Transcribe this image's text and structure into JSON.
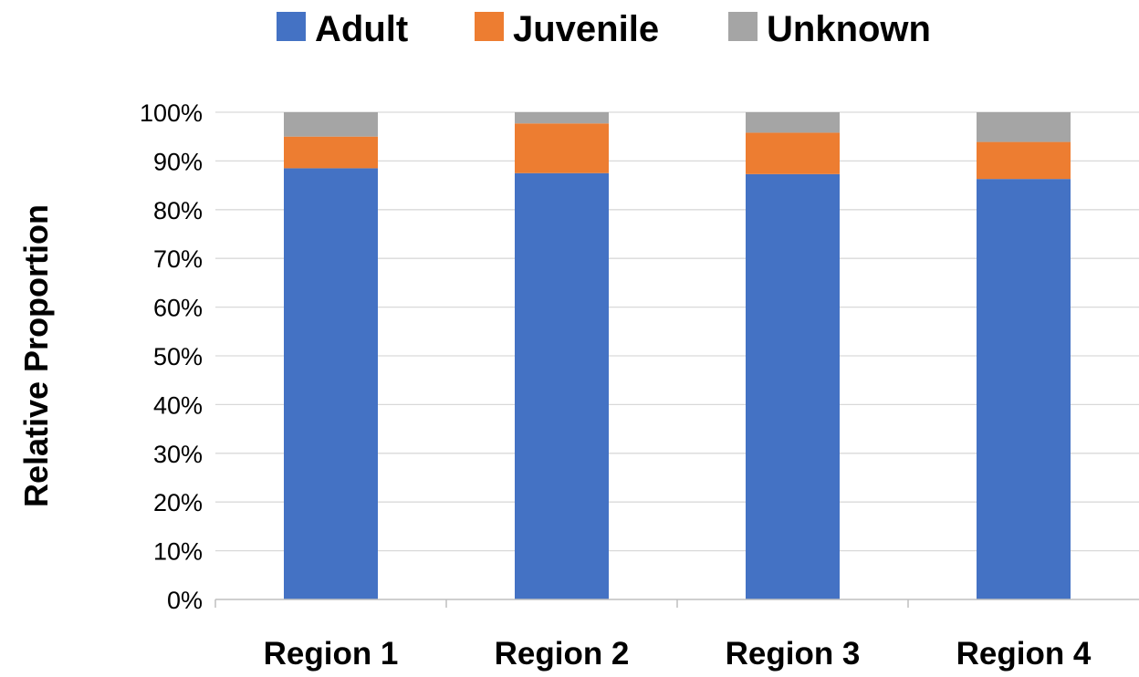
{
  "chart_data": {
    "type": "bar",
    "stacked": true,
    "percent_stacked": true,
    "categories": [
      "Region 1",
      "Region 2",
      "Region 3",
      "Region 4"
    ],
    "series": [
      {
        "name": "Adult",
        "color": "#4472C4",
        "values": [
          88.5,
          87.5,
          87.3,
          86.3
        ]
      },
      {
        "name": "Juvenile",
        "color": "#ED7D31",
        "values": [
          6.5,
          10.2,
          8.5,
          7.6
        ]
      },
      {
        "name": "Unknown",
        "color": "#A5A5A5",
        "values": [
          5.0,
          2.3,
          4.2,
          6.1
        ]
      }
    ],
    "title": "",
    "xlabel": "",
    "ylabel": "Relative Proportion",
    "ylim": [
      0,
      100
    ],
    "yticks": [
      "0%",
      "10%",
      "20%",
      "30%",
      "40%",
      "50%",
      "60%",
      "70%",
      "80%",
      "90%",
      "100%"
    ],
    "grid": true,
    "legend_position": "top"
  }
}
